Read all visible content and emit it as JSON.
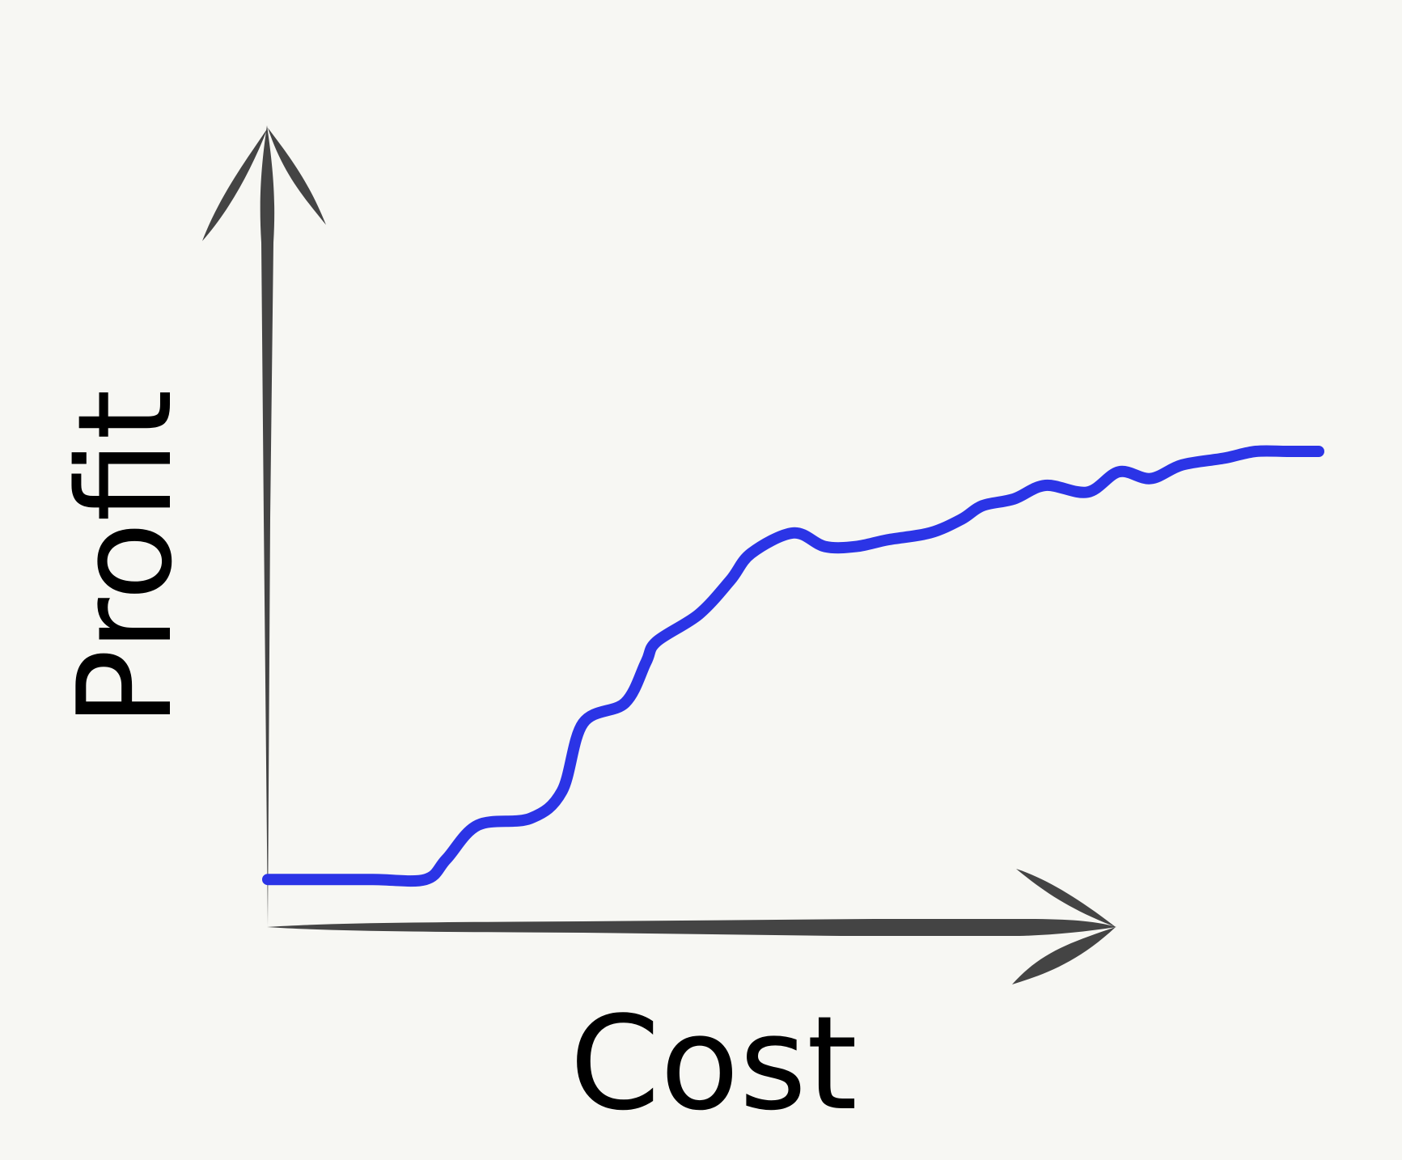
{
  "colors": {
    "background": "#f7f7f3",
    "axis": "#444444",
    "series": "#2b34e6",
    "text": "#000000"
  },
  "chart_data": {
    "type": "line",
    "title": "",
    "xlabel": "Cost",
    "ylabel": "Profit",
    "xlim": [
      0,
      100
    ],
    "ylim": [
      0,
      100
    ],
    "grid": false,
    "ticks": false,
    "series": [
      {
        "name": "",
        "x": [
          0,
          4,
          10,
          15,
          17,
          20,
          25,
          28,
          30,
          34,
          36,
          37,
          41,
          44,
          46,
          50,
          53,
          56,
          59,
          63,
          66,
          68,
          71,
          74,
          78,
          81,
          84,
          87,
          91,
          94,
          97,
          100
        ],
        "y": [
          7,
          7,
          7,
          7,
          10,
          15,
          16,
          20,
          30,
          33,
          39,
          42,
          46,
          51,
          55,
          58,
          56,
          56,
          57,
          58,
          60,
          62,
          63,
          65,
          64,
          67,
          66,
          68,
          69,
          70,
          70,
          70
        ]
      }
    ]
  }
}
